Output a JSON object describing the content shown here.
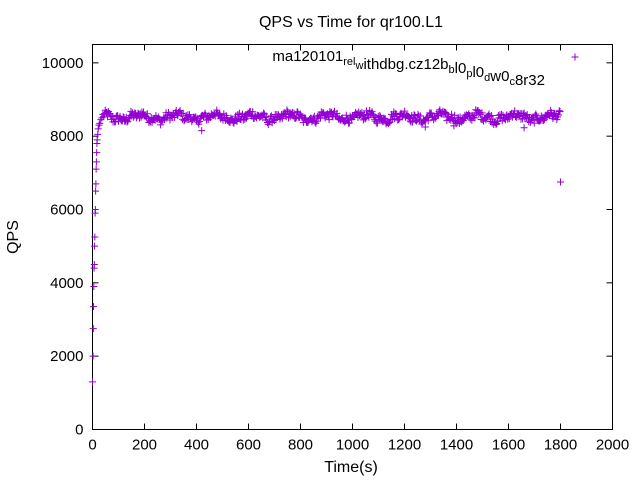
{
  "chart_data": {
    "type": "scatter",
    "title": "QPS vs Time for qr100.L1",
    "xlabel": "Time(s)",
    "ylabel": "QPS",
    "xlim": [
      0,
      2000
    ],
    "ylim": [
      0,
      10500
    ],
    "xticks": [
      0,
      200,
      400,
      600,
      800,
      1000,
      1200,
      1400,
      1600,
      1800,
      2000
    ],
    "yticks": [
      0,
      2000,
      4000,
      6000,
      8000,
      10000
    ],
    "grid": false,
    "legend_position": "top-right",
    "marker": "+",
    "series": [
      {
        "name": "ma120101_rel_withdbg.cz12b_bl0_pl0_dw0_c8r32",
        "color": "#9400d3",
        "legend_label_parts": [
          {
            "text": "ma120101",
            "sub": false
          },
          {
            "text": "rel",
            "sub": true
          },
          {
            "text": "w",
            "sub": true
          },
          {
            "text": "ithdbg.cz12b",
            "sub": false
          },
          {
            "text": "b",
            "sub": true
          },
          {
            "text": "l0",
            "sub": false
          },
          {
            "text": "p",
            "sub": true
          },
          {
            "text": "l0",
            "sub": false
          },
          {
            "text": "d",
            "sub": true
          },
          {
            "text": "w0",
            "sub": false
          },
          {
            "text": "c",
            "sub": true
          },
          {
            "text": "8r32",
            "sub": false
          }
        ],
        "points": [
          [
            0,
            1300
          ],
          [
            2,
            2000
          ],
          [
            3,
            2750
          ],
          [
            4,
            3350
          ],
          [
            5,
            3900
          ],
          [
            6,
            4400
          ],
          [
            7,
            4500
          ],
          [
            8,
            5000
          ],
          [
            9,
            5250
          ],
          [
            10,
            5900
          ],
          [
            11,
            6000
          ],
          [
            12,
            6500
          ],
          [
            13,
            6700
          ],
          [
            14,
            7100
          ],
          [
            15,
            7300
          ],
          [
            16,
            7550
          ],
          [
            17,
            7800
          ],
          [
            18,
            7900
          ],
          [
            20,
            8050
          ],
          [
            22,
            8200
          ],
          [
            25,
            8300
          ],
          [
            28,
            8350
          ],
          [
            32,
            8450
          ],
          [
            36,
            8500
          ],
          [
            420,
            8150
          ],
          [
            1280,
            8250
          ],
          [
            1390,
            8280
          ],
          [
            1660,
            8230
          ],
          [
            1800,
            6750
          ]
        ],
        "band": {
          "x_start": 40,
          "x_end": 1800,
          "step": 3,
          "center": 8520,
          "wobble": 70,
          "noise": 110
        }
      }
    ]
  }
}
